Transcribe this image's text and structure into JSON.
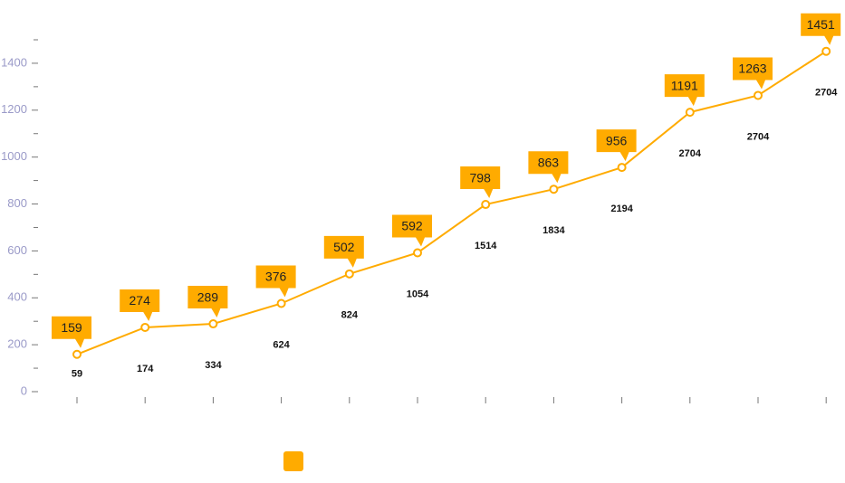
{
  "chart_data": {
    "type": "line",
    "categories": [
      null,
      null,
      null,
      null,
      null,
      null,
      null,
      null,
      null,
      null,
      null,
      null
    ],
    "series": [
      {
        "color": "#ffab00",
        "values": [
          159,
          274,
          289,
          376,
          502,
          592,
          798,
          863,
          956,
          1191,
          1263,
          1451
        ]
      }
    ],
    "annotations": [
      59,
      174,
      334,
      624,
      824,
      1054,
      1514,
      1834,
      2194,
      2704,
      2704,
      2704
    ],
    "ylim": [
      0,
      1500
    ],
    "yticks": [
      0,
      200,
      400,
      600,
      800,
      1000,
      1200,
      1400
    ],
    "minor_yticks": [
      100,
      300,
      500,
      700,
      900,
      1100,
      1300,
      1500
    ],
    "legend": "bottom"
  }
}
